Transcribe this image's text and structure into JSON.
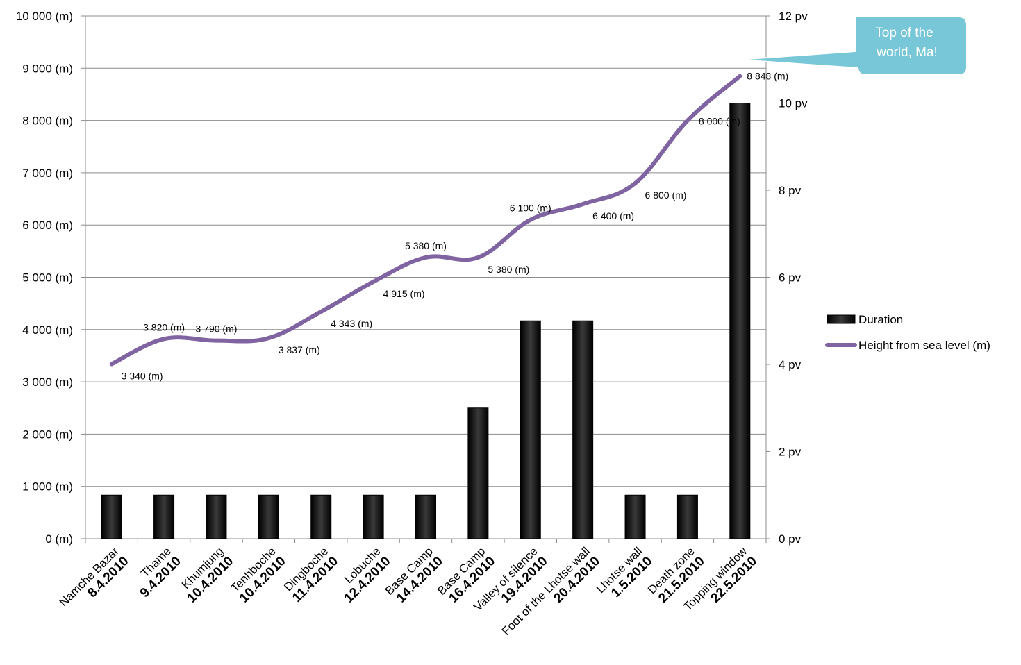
{
  "chart_data": {
    "type": "bar",
    "categories": [
      {
        "name": "Namche Bazar",
        "date": "8.4.2010"
      },
      {
        "name": "Thame",
        "date": "9.4.2010"
      },
      {
        "name": "Khumjung",
        "date": "10.4.2010"
      },
      {
        "name": "Tenhboche",
        "date": "10.4.2010"
      },
      {
        "name": "Dingboche",
        "date": "11.4.2010"
      },
      {
        "name": "Lobuche",
        "date": "12.4.2010"
      },
      {
        "name": "Base Camp",
        "date": "14.4.2010"
      },
      {
        "name": "Base Camp",
        "date": "16.4.2010"
      },
      {
        "name": "Valley of silence",
        "date": "19.4.2010"
      },
      {
        "name": "Foot of the Lhotse wall",
        "date": "20.4.2010"
      },
      {
        "name": "Lhotse wall",
        "date": "1.5.2010"
      },
      {
        "name": "Death zone",
        "date": "21.5.2010"
      },
      {
        "name": "Topping window",
        "date": "22.5.2010"
      }
    ],
    "series": [
      {
        "name": "Duration",
        "type": "bar",
        "axis": "right",
        "color": "#000000",
        "values": [
          1,
          1,
          1,
          1,
          1,
          1,
          1,
          3,
          5,
          5,
          1,
          1,
          10
        ]
      },
      {
        "name": "Height from sea level (m)",
        "type": "line",
        "axis": "left",
        "color": "#8064a2",
        "values": [
          3340,
          3820,
          3790,
          3837,
          4343,
          4915,
          5380,
          5380,
          6100,
          6400,
          6800,
          8000,
          8848
        ],
        "labels": [
          "3 340 (m)",
          "3 820 (m)",
          "3 790 (m)",
          "3 837 (m)",
          "4 343 (m)",
          "4 915 (m)",
          "5 380 (m)",
          "5 380 (m)",
          "6 100 (m)",
          "6 400 (m)",
          "6 800 (m)",
          "8 000 (m)",
          "8 848 (m)"
        ]
      }
    ],
    "y_left": {
      "range": [
        0,
        10000
      ],
      "ticks": [
        "0 (m)",
        "1 000 (m)",
        "2 000 (m)",
        "3 000 (m)",
        "4 000 (m)",
        "5 000 (m)",
        "6 000 (m)",
        "7 000 (m)",
        "8 000 (m)",
        "9 000 (m)",
        "10 000 (m)"
      ]
    },
    "y_right": {
      "range": [
        0,
        12
      ],
      "ticks": [
        "0 pv",
        "2 pv",
        "4 pv",
        "6 pv",
        "8 pv",
        "10 pv",
        "12 pv"
      ]
    },
    "grid": true,
    "legend_position": "right",
    "annotation": {
      "text_lines": [
        "Top of the",
        "world, Ma!"
      ],
      "color": "#77c6d6"
    }
  }
}
